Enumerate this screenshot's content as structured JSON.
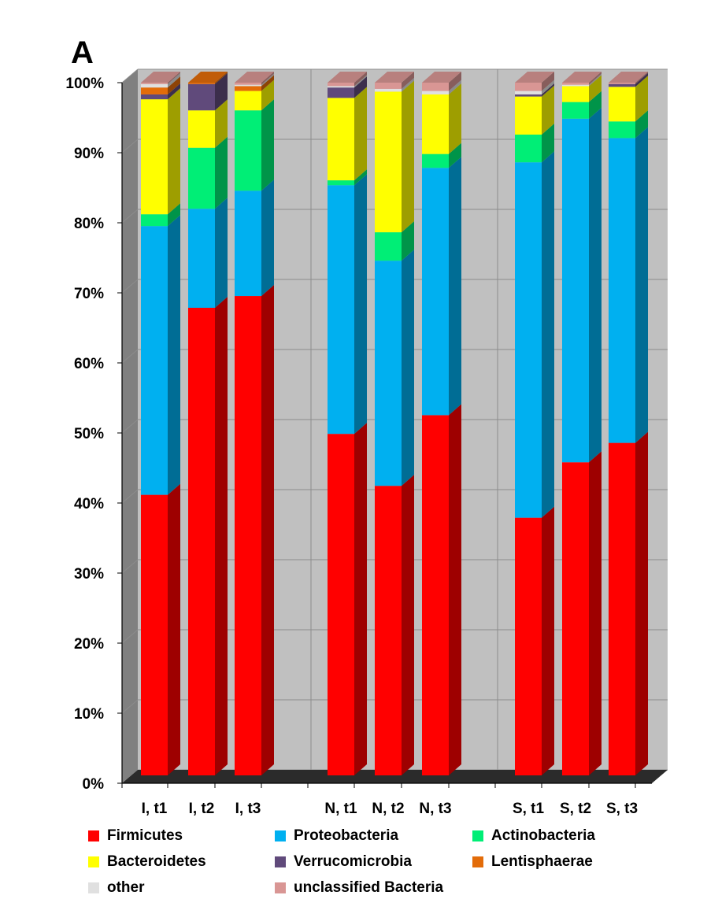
{
  "panel_label": "A",
  "chart_data": {
    "type": "bar",
    "stacked": true,
    "three_d": true,
    "categories": [
      "I, t1",
      "I, t2",
      "I, t3",
      "N, t1",
      "N, t2",
      "N, t3",
      "S, t1",
      "S, t2",
      "S, t3"
    ],
    "groups": [
      [
        "I, t1",
        "I, t2",
        "I, t3"
      ],
      [
        "N, t1",
        "N, t2",
        "N, t3"
      ],
      [
        "S, t1",
        "S, t2",
        "S, t3"
      ]
    ],
    "series": [
      {
        "name": "Firmicutes",
        "color": "#ff0000",
        "values": [
          40.5,
          67.5,
          69.2,
          49.3,
          41.8,
          52.0,
          37.2,
          45.2,
          48.0
        ]
      },
      {
        "name": "Proteobacteria",
        "color": "#00b0f0",
        "values": [
          38.8,
          14.3,
          15.2,
          35.9,
          32.5,
          35.7,
          51.3,
          49.6,
          44.0
        ]
      },
      {
        "name": "Actinobacteria",
        "color": "#00ee76",
        "values": [
          1.7,
          8.8,
          11.6,
          0.7,
          4.1,
          2.0,
          4.0,
          2.4,
          2.4
        ]
      },
      {
        "name": "Bacteroidetes",
        "color": "#ffff00",
        "values": [
          16.6,
          5.4,
          2.8,
          11.9,
          20.3,
          8.6,
          5.5,
          2.3,
          5.0
        ]
      },
      {
        "name": "Verrucomicrobia",
        "color": "#604a7b",
        "values": [
          0.7,
          3.8,
          0.0,
          1.5,
          0.0,
          0.0,
          0.3,
          0.0,
          0.4
        ]
      },
      {
        "name": "Lentisphaerae",
        "color": "#e36c09",
        "values": [
          1.0,
          0.2,
          0.7,
          0.0,
          0.0,
          0.0,
          0.0,
          0.0,
          0.0
        ]
      },
      {
        "name": "other",
        "color": "#e0e0e0",
        "values": [
          0.5,
          0.0,
          0.2,
          0.2,
          0.4,
          0.5,
          0.5,
          0.2,
          0.0
        ]
      },
      {
        "name": "unclassified Bacteria",
        "color": "#d99694",
        "values": [
          0.2,
          0.0,
          0.3,
          0.5,
          0.9,
          1.2,
          1.2,
          0.3,
          0.2
        ]
      }
    ],
    "yticks": [
      "0%",
      "10%",
      "20%",
      "30%",
      "40%",
      "50%",
      "60%",
      "70%",
      "80%",
      "90%",
      "100%"
    ],
    "ylim": [
      0,
      100
    ],
    "grid": true,
    "legend_position": "bottom"
  }
}
